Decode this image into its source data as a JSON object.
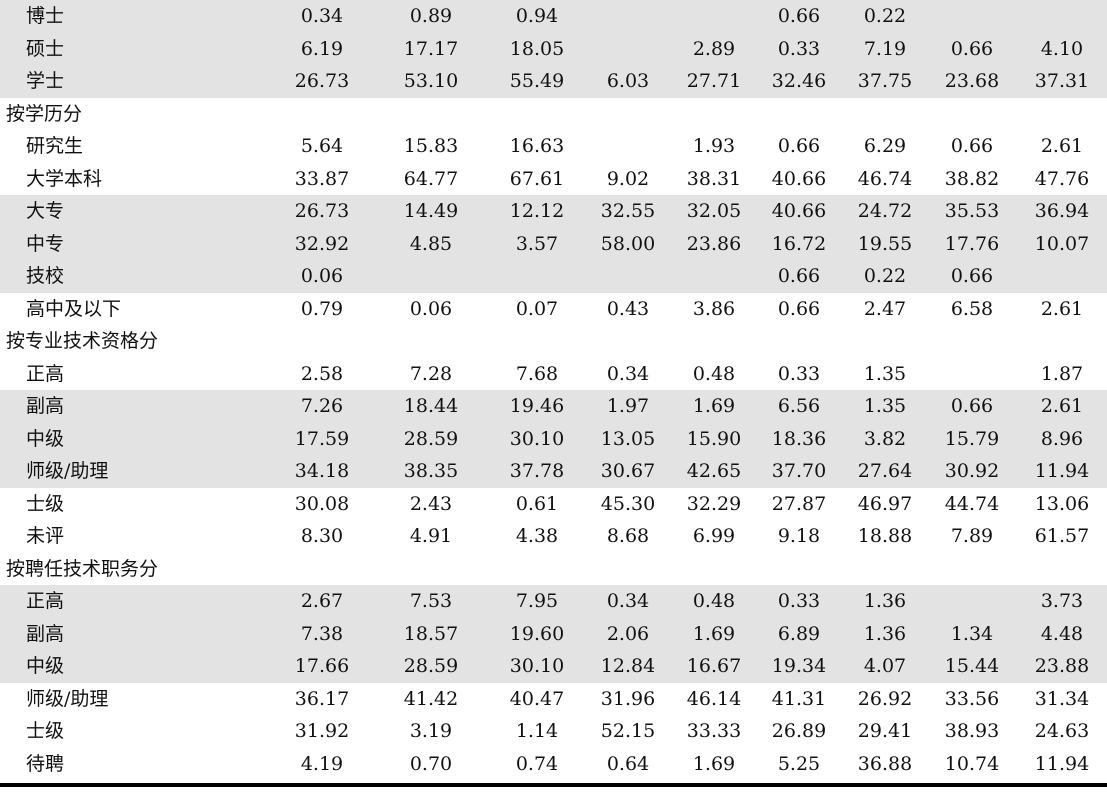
{
  "rows": [
    {
      "kind": "item",
      "label": "博士",
      "values": [
        "0.34",
        "0.89",
        "0.94",
        "",
        "",
        "0.66",
        "0.22",
        "",
        ""
      ],
      "shaded": true
    },
    {
      "kind": "item",
      "label": "硕士",
      "values": [
        "6.19",
        "17.17",
        "18.05",
        "",
        "2.89",
        "0.33",
        "7.19",
        "0.66",
        "4.10"
      ],
      "shaded": true
    },
    {
      "kind": "item",
      "label": "学士",
      "values": [
        "26.73",
        "53.10",
        "55.49",
        "6.03",
        "27.71",
        "32.46",
        "37.75",
        "23.68",
        "37.31"
      ],
      "shaded": true
    },
    {
      "kind": "section",
      "label": "按学历分",
      "values": [
        "",
        "",
        "",
        "",
        "",
        "",
        "",
        "",
        ""
      ],
      "shaded": false
    },
    {
      "kind": "item",
      "label": "研究生",
      "values": [
        "5.64",
        "15.83",
        "16.63",
        "",
        "1.93",
        "0.66",
        "6.29",
        "0.66",
        "2.61"
      ],
      "shaded": false
    },
    {
      "kind": "item",
      "label": "大学本科",
      "values": [
        "33.87",
        "64.77",
        "67.61",
        "9.02",
        "38.31",
        "40.66",
        "46.74",
        "38.82",
        "47.76"
      ],
      "shaded": false
    },
    {
      "kind": "item",
      "label": "大专",
      "values": [
        "26.73",
        "14.49",
        "12.12",
        "32.55",
        "32.05",
        "40.66",
        "24.72",
        "35.53",
        "36.94"
      ],
      "shaded": true
    },
    {
      "kind": "item",
      "label": "中专",
      "values": [
        "32.92",
        "4.85",
        "3.57",
        "58.00",
        "23.86",
        "16.72",
        "19.55",
        "17.76",
        "10.07"
      ],
      "shaded": true
    },
    {
      "kind": "item",
      "label": "技校",
      "values": [
        "0.06",
        "",
        "",
        "",
        "",
        "0.66",
        "0.22",
        "0.66",
        ""
      ],
      "shaded": true
    },
    {
      "kind": "item",
      "label": "高中及以下",
      "values": [
        "0.79",
        "0.06",
        "0.07",
        "0.43",
        "3.86",
        "0.66",
        "2.47",
        "6.58",
        "2.61"
      ],
      "shaded": false
    },
    {
      "kind": "section",
      "label": "按专业技术资格分",
      "values": [
        "",
        "",
        "",
        "",
        "",
        "",
        "",
        "",
        ""
      ],
      "shaded": false
    },
    {
      "kind": "item",
      "label": "正高",
      "values": [
        "2.58",
        "7.28",
        "7.68",
        "0.34",
        "0.48",
        "0.33",
        "1.35",
        "",
        "1.87"
      ],
      "shaded": false
    },
    {
      "kind": "item",
      "label": "副高",
      "values": [
        "7.26",
        "18.44",
        "19.46",
        "1.97",
        "1.69",
        "6.56",
        "1.35",
        "0.66",
        "2.61"
      ],
      "shaded": true
    },
    {
      "kind": "item",
      "label": "中级",
      "values": [
        "17.59",
        "28.59",
        "30.10",
        "13.05",
        "15.90",
        "18.36",
        "3.82",
        "15.79",
        "8.96"
      ],
      "shaded": true
    },
    {
      "kind": "item",
      "label": "师级/助理",
      "values": [
        "34.18",
        "38.35",
        "37.78",
        "30.67",
        "42.65",
        "37.70",
        "27.64",
        "30.92",
        "11.94"
      ],
      "shaded": true
    },
    {
      "kind": "item",
      "label": "士级",
      "values": [
        "30.08",
        "2.43",
        "0.61",
        "45.30",
        "32.29",
        "27.87",
        "46.97",
        "44.74",
        "13.06"
      ],
      "shaded": false
    },
    {
      "kind": "item",
      "label": "未评",
      "values": [
        "8.30",
        "4.91",
        "4.38",
        "8.68",
        "6.99",
        "9.18",
        "18.88",
        "7.89",
        "61.57"
      ],
      "shaded": false
    },
    {
      "kind": "section",
      "label": "按聘任技术职务分",
      "values": [
        "",
        "",
        "",
        "",
        "",
        "",
        "",
        "",
        ""
      ],
      "shaded": false
    },
    {
      "kind": "item",
      "label": "正高",
      "values": [
        "2.67",
        "7.53",
        "7.95",
        "0.34",
        "0.48",
        "0.33",
        "1.36",
        "",
        "3.73"
      ],
      "shaded": true
    },
    {
      "kind": "item",
      "label": "副高",
      "values": [
        "7.38",
        "18.57",
        "19.60",
        "2.06",
        "1.69",
        "6.89",
        "1.36",
        "1.34",
        "4.48"
      ],
      "shaded": true
    },
    {
      "kind": "item",
      "label": "中级",
      "values": [
        "17.66",
        "28.59",
        "30.10",
        "12.84",
        "16.67",
        "19.34",
        "4.07",
        "15.44",
        "23.88"
      ],
      "shaded": true
    },
    {
      "kind": "item",
      "label": "师级/助理",
      "values": [
        "36.17",
        "41.42",
        "40.47",
        "31.96",
        "46.14",
        "41.31",
        "26.92",
        "33.56",
        "31.34"
      ],
      "shaded": false
    },
    {
      "kind": "item",
      "label": "士级",
      "values": [
        "31.92",
        "3.19",
        "1.14",
        "52.15",
        "33.33",
        "26.89",
        "29.41",
        "38.93",
        "24.63"
      ],
      "shaded": false
    },
    {
      "kind": "item",
      "label": "待聘",
      "values": [
        "4.19",
        "0.70",
        "0.74",
        "0.64",
        "1.69",
        "5.25",
        "36.88",
        "10.74",
        "11.94"
      ],
      "shaded": false
    }
  ]
}
